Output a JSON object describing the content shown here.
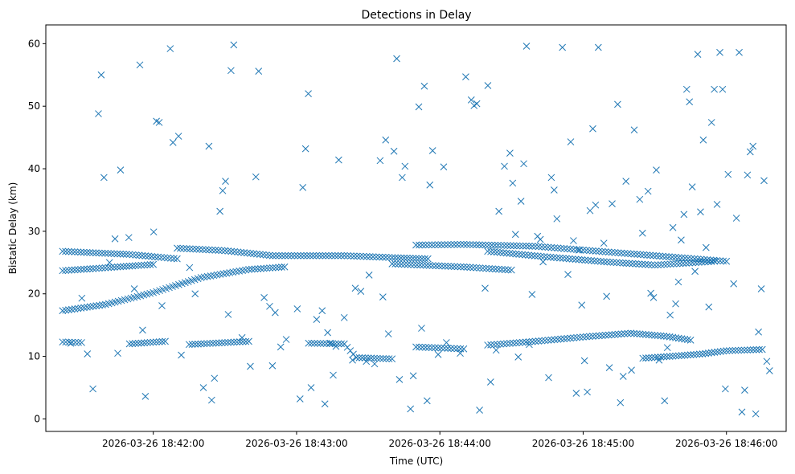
{
  "chart_data": {
    "type": "scatter",
    "title": "Detections in Delay",
    "xlabel": "Time (UTC)",
    "ylabel": "Bistatic Delay (km)",
    "marker": "x",
    "color": "#1f77b4",
    "grid": false,
    "xlim": [
      "2026-03-26 18:41:15",
      "2026-03-26 18:46:25"
    ],
    "ylim": [
      -2,
      63
    ],
    "x_ticks": [
      "2026-03-26 18:42:00",
      "2026-03-26 18:43:00",
      "2026-03-26 18:44:00",
      "2026-03-26 18:45:00",
      "2026-03-26 18:46:00"
    ],
    "y_ticks": [
      "0",
      "10",
      "20",
      "30",
      "40",
      "50",
      "60"
    ],
    "tracks": [
      {
        "x": [
          [
            "2026-03-26 18:41:22",
            17.3
          ],
          [
            "2026-03-26 18:41:40",
            18.3
          ],
          [
            "2026-03-26 18:42:00",
            20.2
          ],
          [
            "2026-03-26 18:42:20",
            22.6
          ],
          [
            "2026-03-26 18:42:40",
            23.9
          ],
          [
            "2026-03-26 18:42:55",
            24.3
          ]
        ]
      },
      {
        "x": [
          [
            "2026-03-26 18:41:22",
            23.7
          ],
          [
            "2026-03-26 18:41:45",
            24.3
          ],
          [
            "2026-03-26 18:42:00",
            24.7
          ]
        ]
      },
      {
        "x": [
          [
            "2026-03-26 18:41:22",
            26.8
          ],
          [
            "2026-03-26 18:41:50",
            26.3
          ],
          [
            "2026-03-26 18:42:10",
            25.6
          ]
        ]
      },
      {
        "x": [
          [
            "2026-03-26 18:42:10",
            27.3
          ],
          [
            "2026-03-26 18:42:30",
            26.9
          ],
          [
            "2026-03-26 18:42:50",
            26.1
          ],
          [
            "2026-03-26 18:43:20",
            26.1
          ],
          [
            "2026-03-26 18:43:40",
            25.8
          ],
          [
            "2026-03-26 18:43:55",
            25.6
          ]
        ]
      },
      {
        "x": [
          [
            "2026-03-26 18:43:50",
            27.8
          ],
          [
            "2026-03-26 18:44:10",
            27.9
          ],
          [
            "2026-03-26 18:44:40",
            27.6
          ],
          [
            "2026-03-26 18:45:00",
            27.0
          ],
          [
            "2026-03-26 18:45:20",
            26.4
          ],
          [
            "2026-03-26 18:45:40",
            25.8
          ],
          [
            "2026-03-26 18:46:00",
            25.2
          ]
        ]
      },
      {
        "x": [
          [
            "2026-03-26 18:43:40",
            24.8
          ],
          [
            "2026-03-26 18:44:10",
            24.3
          ],
          [
            "2026-03-26 18:44:30",
            23.8
          ]
        ]
      },
      {
        "x": [
          [
            "2026-03-26 18:44:20",
            26.8
          ],
          [
            "2026-03-26 18:44:45",
            25.9
          ],
          [
            "2026-03-26 18:45:10",
            25.1
          ],
          [
            "2026-03-26 18:45:30",
            24.6
          ],
          [
            "2026-03-26 18:45:55",
            25.2
          ]
        ]
      },
      {
        "x": [
          [
            "2026-03-26 18:41:22",
            12.3
          ],
          [
            "2026-03-26 18:41:30",
            12.2
          ]
        ]
      },
      {
        "x": [
          [
            "2026-03-26 18:41:50",
            12.0
          ],
          [
            "2026-03-26 18:42:05",
            12.4
          ]
        ]
      },
      {
        "x": [
          [
            "2026-03-26 18:42:15",
            11.9
          ],
          [
            "2026-03-26 18:42:30",
            12.2
          ],
          [
            "2026-03-26 18:42:40",
            12.4
          ]
        ]
      },
      {
        "x": [
          [
            "2026-03-26 18:43:05",
            12.1
          ],
          [
            "2026-03-26 18:43:20",
            12.0
          ],
          [
            "2026-03-26 18:43:25",
            9.8
          ],
          [
            "2026-03-26 18:43:40",
            9.6
          ]
        ]
      },
      {
        "x": [
          [
            "2026-03-26 18:43:50",
            11.5
          ],
          [
            "2026-03-26 18:44:10",
            11.2
          ]
        ]
      },
      {
        "x": [
          [
            "2026-03-26 18:44:20",
            11.8
          ],
          [
            "2026-03-26 18:44:40",
            12.4
          ],
          [
            "2026-03-26 18:45:00",
            13.1
          ],
          [
            "2026-03-26 18:45:20",
            13.7
          ],
          [
            "2026-03-26 18:45:35",
            13.2
          ],
          [
            "2026-03-26 18:45:45",
            12.6
          ]
        ]
      },
      {
        "x": [
          [
            "2026-03-26 18:45:25",
            9.7
          ],
          [
            "2026-03-26 18:45:40",
            10.1
          ],
          [
            "2026-03-26 18:45:50",
            10.4
          ],
          [
            "2026-03-26 18:46:00",
            10.9
          ],
          [
            "2026-03-26 18:46:15",
            11.1
          ]
        ]
      }
    ],
    "scattered_points": [
      [
        78,
        12.1
      ],
      [
        82,
        19.3
      ],
      [
        84,
        10.4
      ],
      [
        86,
        4.8
      ],
      [
        88,
        48.8
      ],
      [
        89,
        55.0
      ],
      [
        90,
        38.6
      ],
      [
        92,
        25.0
      ],
      [
        94,
        28.8
      ],
      [
        95,
        10.5
      ],
      [
        96,
        39.8
      ],
      [
        99,
        29.0
      ],
      [
        101,
        20.8
      ],
      [
        103,
        56.6
      ],
      [
        104,
        14.2
      ],
      [
        105,
        3.6
      ],
      [
        108,
        29.9
      ],
      [
        109,
        47.6
      ],
      [
        110,
        47.4
      ],
      [
        111,
        18.1
      ],
      [
        114,
        59.2
      ],
      [
        115,
        44.2
      ],
      [
        117,
        45.2
      ],
      [
        118,
        10.2
      ],
      [
        121,
        24.2
      ],
      [
        123,
        20.0
      ],
      [
        126,
        5.0
      ],
      [
        128,
        43.6
      ],
      [
        129,
        3.0
      ],
      [
        130,
        6.5
      ],
      [
        132,
        33.2
      ],
      [
        133,
        36.5
      ],
      [
        134,
        38.0
      ],
      [
        135,
        16.7
      ],
      [
        136,
        55.7
      ],
      [
        137,
        59.8
      ],
      [
        140,
        13.0
      ],
      [
        143,
        8.4
      ],
      [
        145,
        38.7
      ],
      [
        146,
        55.6
      ],
      [
        148,
        19.4
      ],
      [
        150,
        18.0
      ],
      [
        151,
        8.5
      ],
      [
        152,
        17.0
      ],
      [
        154,
        11.5
      ],
      [
        156,
        12.7
      ],
      [
        160,
        17.6
      ],
      [
        161,
        3.2
      ],
      [
        162,
        37.0
      ],
      [
        163,
        43.2
      ],
      [
        164,
        52.0
      ],
      [
        165,
        5.0
      ],
      [
        167,
        15.9
      ],
      [
        169,
        17.3
      ],
      [
        170,
        2.4
      ],
      [
        171,
        13.8
      ],
      [
        172,
        12.1
      ],
      [
        173,
        7.0
      ],
      [
        174,
        11.6
      ],
      [
        175,
        41.4
      ],
      [
        177,
        16.2
      ],
      [
        180,
        9.4
      ],
      [
        181,
        20.9
      ],
      [
        183,
        20.4
      ],
      [
        185,
        9.2
      ],
      [
        186,
        23.0
      ],
      [
        188,
        8.8
      ],
      [
        190,
        41.3
      ],
      [
        191,
        19.5
      ],
      [
        192,
        44.6
      ],
      [
        193,
        13.6
      ],
      [
        195,
        42.8
      ],
      [
        196,
        57.6
      ],
      [
        197,
        6.3
      ],
      [
        198,
        38.6
      ],
      [
        199,
        40.4
      ],
      [
        201,
        1.6
      ],
      [
        202,
        6.9
      ],
      [
        204,
        49.9
      ],
      [
        205,
        14.5
      ],
      [
        206,
        53.2
      ],
      [
        207,
        2.9
      ],
      [
        208,
        37.4
      ],
      [
        209,
        42.9
      ],
      [
        211,
        10.3
      ],
      [
        213,
        40.3
      ],
      [
        214,
        12.2
      ],
      [
        219,
        10.5
      ],
      [
        221,
        54.7
      ],
      [
        223,
        51.0
      ],
      [
        224,
        50.1
      ],
      [
        225,
        50.4
      ],
      [
        226,
        1.4
      ],
      [
        228,
        20.9
      ],
      [
        229,
        53.3
      ],
      [
        230,
        5.9
      ],
      [
        232,
        11.0
      ],
      [
        233,
        33.2
      ],
      [
        235,
        40.4
      ],
      [
        237,
        42.5
      ],
      [
        238,
        37.7
      ],
      [
        239,
        29.5
      ],
      [
        240,
        9.9
      ],
      [
        241,
        34.8
      ],
      [
        242,
        40.8
      ],
      [
        243,
        59.6
      ],
      [
        244,
        11.9
      ],
      [
        245,
        19.9
      ],
      [
        247,
        29.2
      ],
      [
        248,
        28.7
      ],
      [
        249,
        25.1
      ],
      [
        251,
        6.6
      ],
      [
        252,
        38.6
      ],
      [
        253,
        36.6
      ],
      [
        254,
        32.0
      ],
      [
        256,
        59.4
      ],
      [
        258,
        23.1
      ],
      [
        259,
        44.3
      ],
      [
        260,
        28.5
      ],
      [
        261,
        4.1
      ],
      [
        262,
        27.0
      ],
      [
        263,
        18.2
      ],
      [
        264,
        9.3
      ],
      [
        265,
        4.3
      ],
      [
        266,
        33.3
      ],
      [
        267,
        46.4
      ],
      [
        268,
        34.2
      ],
      [
        269,
        59.4
      ],
      [
        271,
        28.1
      ],
      [
        272,
        19.6
      ],
      [
        273,
        8.2
      ],
      [
        274,
        34.4
      ],
      [
        276,
        50.3
      ],
      [
        277,
        2.6
      ],
      [
        278,
        6.8
      ],
      [
        279,
        38.0
      ],
      [
        281,
        7.8
      ],
      [
        282,
        46.2
      ],
      [
        284,
        35.1
      ],
      [
        285,
        29.7
      ],
      [
        287,
        36.4
      ],
      [
        288,
        20.1
      ],
      [
        289,
        19.4
      ],
      [
        290,
        39.8
      ],
      [
        291,
        9.4
      ],
      [
        293,
        2.9
      ],
      [
        294,
        11.4
      ],
      [
        295,
        16.6
      ],
      [
        296,
        30.6
      ],
      [
        297,
        18.4
      ],
      [
        298,
        21.9
      ],
      [
        299,
        28.6
      ],
      [
        300,
        32.7
      ],
      [
        301,
        52.7
      ],
      [
        302,
        50.7
      ],
      [
        303,
        37.1
      ],
      [
        304,
        23.6
      ],
      [
        305,
        58.3
      ],
      [
        306,
        33.1
      ],
      [
        307,
        44.6
      ],
      [
        308,
        27.4
      ],
      [
        309,
        17.9
      ],
      [
        310,
        47.4
      ],
      [
        311,
        52.7
      ],
      [
        312,
        34.3
      ],
      [
        313,
        58.6
      ],
      [
        314,
        52.7
      ],
      [
        315,
        4.8
      ],
      [
        316,
        39.1
      ],
      [
        318,
        21.6
      ],
      [
        319,
        32.1
      ],
      [
        320,
        58.6
      ],
      [
        321,
        1.1
      ],
      [
        322,
        4.6
      ],
      [
        323,
        39.0
      ],
      [
        324,
        42.7
      ],
      [
        325,
        43.6
      ],
      [
        326,
        0.8
      ],
      [
        327,
        13.9
      ],
      [
        328,
        20.8
      ],
      [
        329,
        38.1
      ],
      [
        330,
        9.2
      ],
      [
        331,
        7.7
      ]
    ],
    "scattered_points_note": ""
  }
}
